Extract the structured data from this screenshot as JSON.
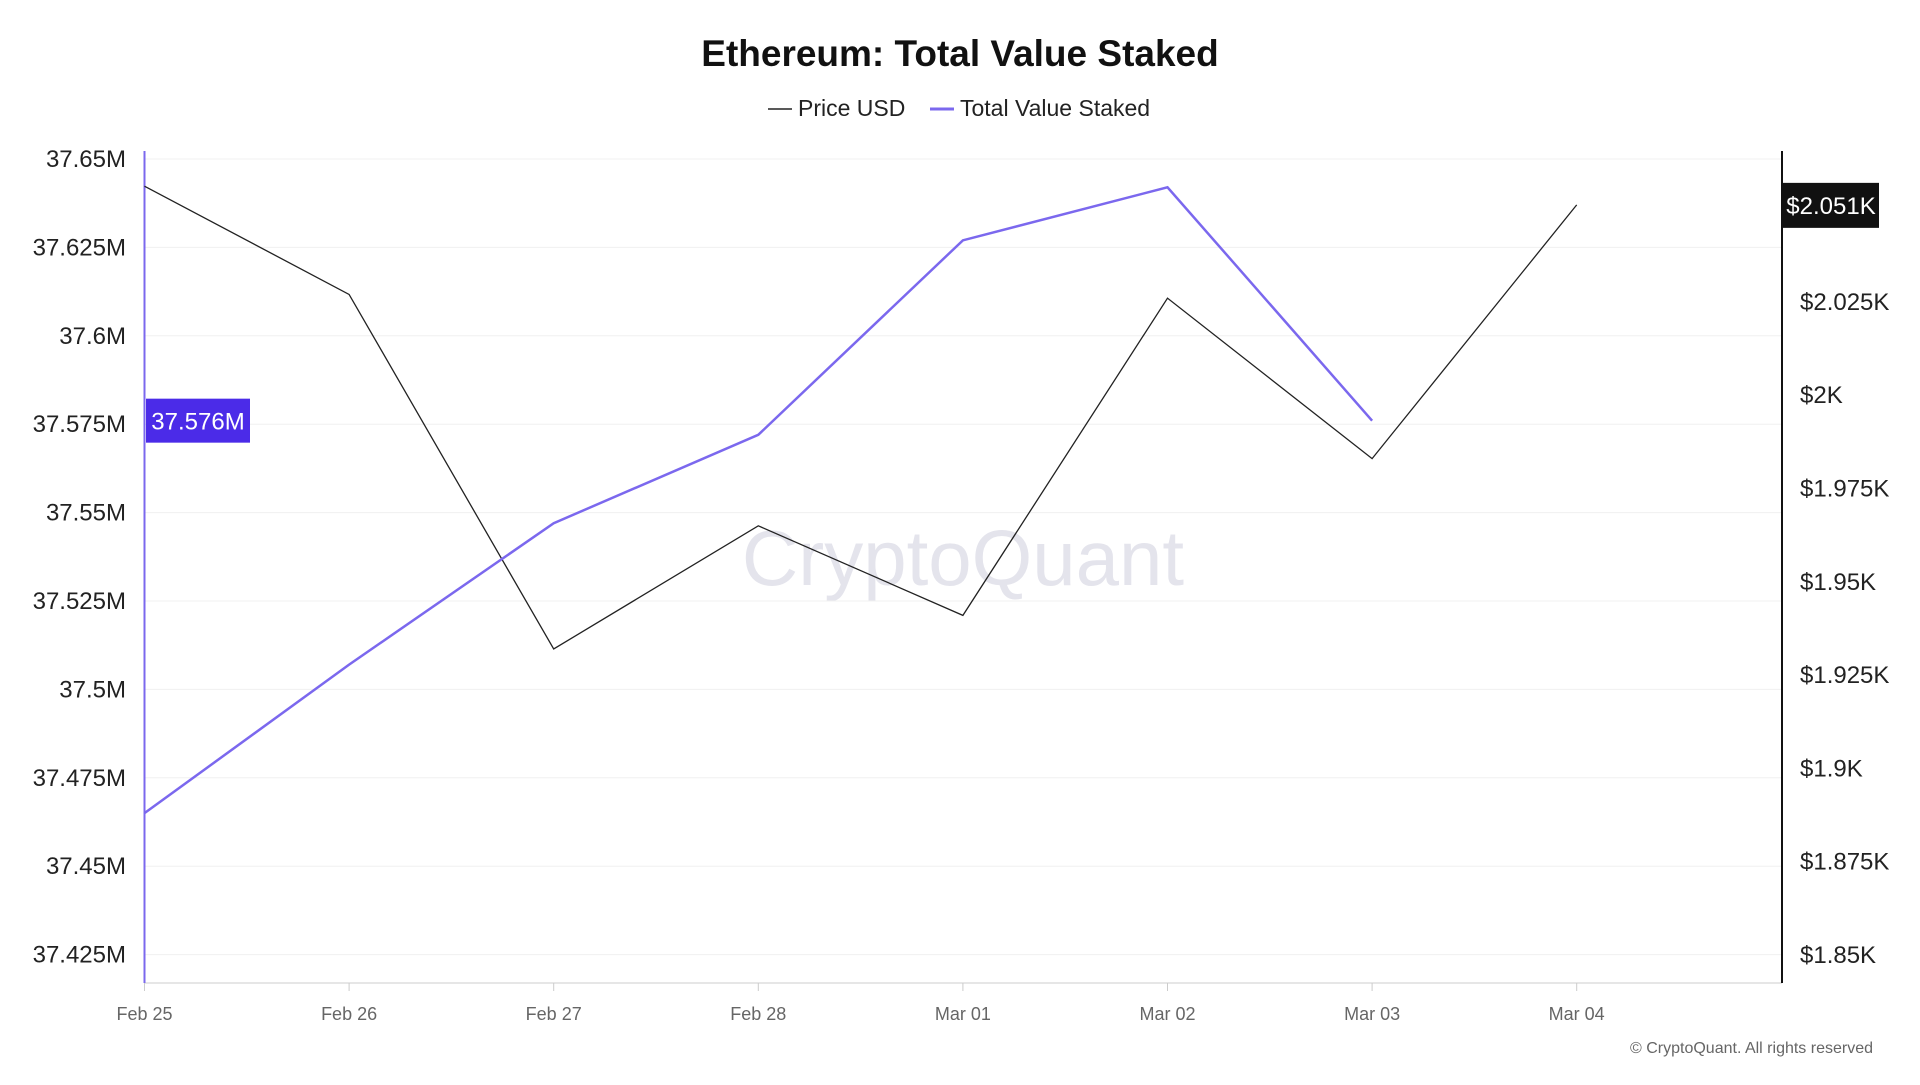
{
  "chart_data": {
    "type": "line",
    "title": "Ethereum: Total Value Staked",
    "legend": [
      "Price USD",
      "Total Value Staked"
    ],
    "legend_position": "top-center",
    "categories": [
      "Feb 25",
      "Feb 26",
      "Feb 27",
      "Feb 28",
      "Mar 01",
      "Mar 02",
      "Mar 03",
      "Mar 04"
    ],
    "series": [
      {
        "name": "Price USD",
        "axis": "right",
        "color": "#222222",
        "unit": "USD",
        "values": [
          2056,
          2027,
          1932,
          1965,
          1941,
          2026,
          1983,
          2051
        ]
      },
      {
        "name": "Total Value Staked",
        "axis": "left",
        "color": "#7B68EE",
        "unit": "ETH",
        "values": [
          37.465,
          37.507,
          37.547,
          37.572,
          37.627,
          37.642,
          37.576,
          null
        ]
      }
    ],
    "left_axis": {
      "ylim": [
        37.417,
        37.657
      ],
      "ticks": [
        37.65,
        37.625,
        37.6,
        37.575,
        37.55,
        37.525,
        37.5,
        37.475,
        37.45,
        37.425
      ],
      "tick_labels": [
        "37.65M",
        "37.625M",
        "37.6M",
        "37.575M",
        "37.55M",
        "37.525M",
        "37.5M",
        "37.475M",
        "37.45M",
        "37.425M"
      ]
    },
    "right_axis": {
      "ylim": [
        1.8425,
        2.0745
      ],
      "ticks": [
        2.025,
        2.0,
        1.975,
        1.95,
        1.925,
        1.9,
        1.875,
        1.85
      ],
      "tick_labels": [
        "$2.025K",
        "$2K",
        "$1.975K",
        "$1.95K",
        "$1.925K",
        "$1.9K",
        "$1.875K",
        "$1.85K"
      ]
    },
    "left_marker": {
      "label": "37.576M",
      "value": 37.576,
      "color": "#4B2BE8"
    },
    "right_marker": {
      "label": "$2.051K",
      "value": 2.051,
      "color": "#111111"
    },
    "grid": true,
    "watermark": "CryptoQuant",
    "footer": "© CryptoQuant. All rights reserved"
  }
}
